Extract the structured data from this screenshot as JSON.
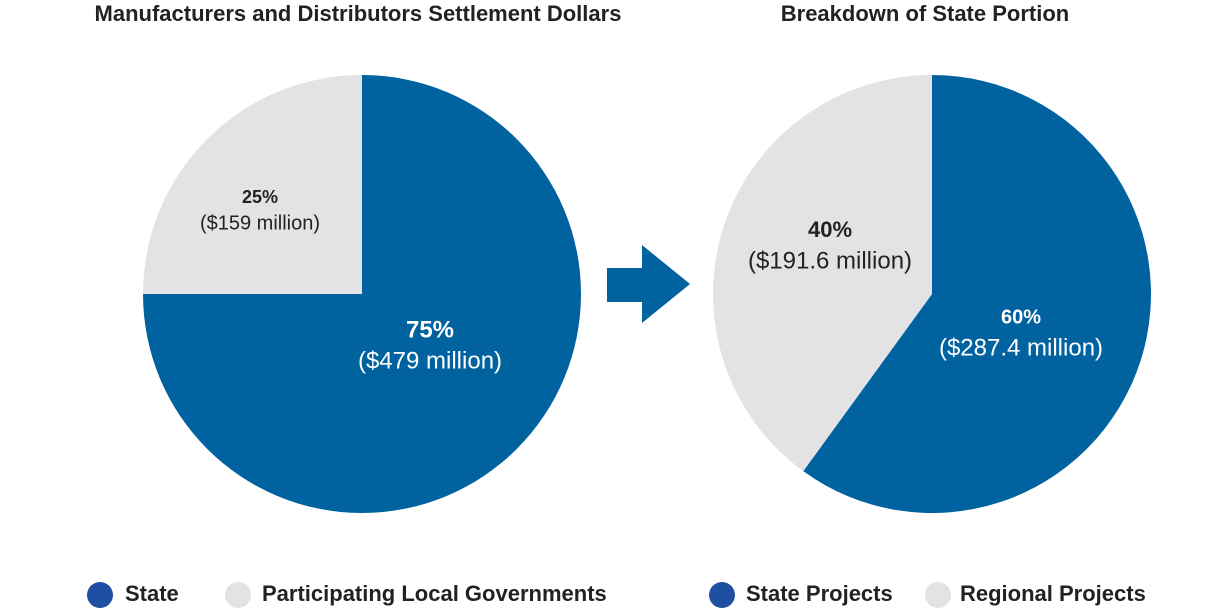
{
  "chart_data": [
    {
      "type": "pie",
      "title": "Manufacturers and Distributors Settlement Dollars",
      "categories": [
        "State",
        "Participating Local Governments"
      ],
      "values": [
        75,
        25
      ],
      "value_labels": [
        "75%",
        "25%"
      ],
      "amount_labels": [
        "($479 million)",
        "($159 million)"
      ],
      "colors": [
        "#00629f",
        "#e3e3e5"
      ]
    },
    {
      "type": "pie",
      "title": "Breakdown of State Portion",
      "categories": [
        "State Projects",
        "Regional Projects"
      ],
      "values": [
        60,
        40
      ],
      "value_labels": [
        "60%",
        "40%"
      ],
      "amount_labels": [
        "($287.4 million)",
        "($191.6 million)"
      ],
      "colors": [
        "#00629f",
        "#e3e3e5"
      ]
    }
  ]
}
